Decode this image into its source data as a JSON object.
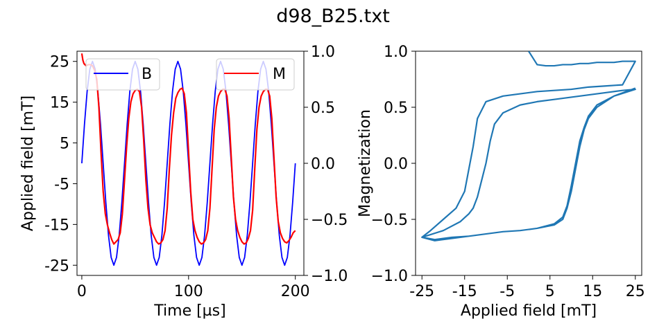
{
  "title": "d98_B25.txt",
  "chart_data": [
    {
      "type": "line",
      "xlabel": "Time [µs]",
      "ylabel": "Applied field [mT]",
      "y2label": "",
      "xlim": [
        -4.5,
        208
      ],
      "ylim": [
        -27.5,
        27.5
      ],
      "y2lim": [
        -1.0,
        1.0
      ],
      "x_ticks": [
        "0",
        "100",
        "200"
      ],
      "y_ticks": [
        "25",
        "15",
        "5",
        "-5",
        "-15",
        "-25"
      ],
      "y2_ticks": [
        "1.0",
        "0.5",
        "0.0",
        "−0.5",
        "−1.0"
      ],
      "grid": false,
      "legend": [
        {
          "label": "B",
          "placement": "top-left"
        },
        {
          "label": "M",
          "placement": "top-right"
        }
      ],
      "series": [
        {
          "name": "B",
          "axis": "left",
          "color": "#0000ff",
          "x": [
            0,
            2.5,
            5,
            7.5,
            10,
            12.5,
            15,
            17.5,
            20,
            22.5,
            25,
            27.5,
            30,
            32.5,
            35,
            37.5,
            40,
            42.5,
            45,
            47.5,
            50,
            52.5,
            55,
            57.5,
            60,
            62.5,
            65,
            67.5,
            70,
            72.5,
            75,
            77.5,
            80,
            82.5,
            85,
            87.5,
            90,
            92.5,
            95,
            97.5,
            100,
            102.5,
            105,
            107.5,
            110,
            112.5,
            115,
            117.5,
            120,
            122.5,
            125,
            127.5,
            130,
            132.5,
            135,
            137.5,
            140,
            142.5,
            145,
            147.5,
            150,
            152.5,
            155,
            157.5,
            160,
            162.5,
            165,
            167.5,
            170,
            172.5,
            175,
            177.5,
            180,
            182.5,
            185,
            187.5,
            190,
            192.5,
            195,
            197.5,
            200
          ],
          "y": [
            0,
            9.6,
            17.7,
            23.1,
            25,
            23.1,
            17.7,
            9.6,
            0,
            -9.6,
            -17.7,
            -23.1,
            -25,
            -23.1,
            -17.7,
            -9.6,
            0,
            9.6,
            17.7,
            23.1,
            25,
            23.1,
            17.7,
            9.6,
            0,
            -9.6,
            -17.7,
            -23.1,
            -25,
            -23.1,
            -17.7,
            -9.6,
            0,
            9.6,
            17.7,
            23.1,
            25,
            23.1,
            17.7,
            9.6,
            0,
            -9.6,
            -17.7,
            -23.1,
            -25,
            -23.1,
            -17.7,
            -9.6,
            0,
            9.6,
            17.7,
            23.1,
            25,
            23.1,
            17.7,
            9.6,
            0,
            -9.6,
            -17.7,
            -23.1,
            -25,
            -23.1,
            -17.7,
            -9.6,
            0,
            9.6,
            17.7,
            23.1,
            25,
            23.1,
            17.7,
            9.6,
            0,
            -9.6,
            -17.7,
            -23.1,
            -25,
            -23.1,
            -17.7,
            -9.6,
            0
          ]
        },
        {
          "name": "M",
          "axis": "right",
          "color": "#ff0000",
          "x": [
            0,
            1,
            2,
            4,
            6,
            8,
            10,
            12,
            14,
            16,
            18,
            20,
            22,
            24,
            26,
            28,
            30,
            32,
            34,
            36,
            38,
            40,
            42,
            44,
            46,
            48,
            50,
            52,
            54,
            56,
            58,
            60,
            62,
            64,
            66,
            68,
            70,
            72,
            74,
            76,
            78,
            80,
            82,
            84,
            86,
            88,
            90,
            92,
            94,
            96,
            98,
            100,
            102,
            104,
            106,
            108,
            110,
            112,
            114,
            116,
            118,
            120,
            122,
            124,
            126,
            128,
            130,
            132,
            134,
            136,
            138,
            140,
            142,
            144,
            146,
            148,
            150,
            152,
            154,
            156,
            158,
            160,
            162,
            164,
            166,
            168,
            170,
            172,
            174,
            176,
            178,
            180,
            182,
            184,
            186,
            188,
            190,
            192,
            194,
            196,
            198,
            200
          ],
          "y": [
            0.98,
            0.92,
            0.89,
            0.87,
            0.88,
            0.88,
            0.87,
            0.83,
            0.75,
            0.5,
            0.1,
            -0.25,
            -0.45,
            -0.55,
            -0.62,
            -0.68,
            -0.72,
            -0.7,
            -0.68,
            -0.62,
            -0.45,
            -0.15,
            0.15,
            0.4,
            0.55,
            0.62,
            0.65,
            0.66,
            0.64,
            0.5,
            0.2,
            -0.15,
            -0.4,
            -0.55,
            -0.62,
            -0.66,
            -0.7,
            -0.72,
            -0.71,
            -0.68,
            -0.6,
            -0.4,
            -0.05,
            0.25,
            0.45,
            0.58,
            0.63,
            0.66,
            0.67,
            0.62,
            0.45,
            0.1,
            -0.25,
            -0.5,
            -0.6,
            -0.66,
            -0.7,
            -0.72,
            -0.71,
            -0.68,
            -0.6,
            -0.4,
            -0.05,
            0.3,
            0.5,
            0.6,
            0.64,
            0.66,
            0.66,
            0.6,
            0.4,
            0.05,
            -0.3,
            -0.5,
            -0.6,
            -0.66,
            -0.7,
            -0.72,
            -0.71,
            -0.67,
            -0.6,
            -0.42,
            -0.05,
            0.3,
            0.5,
            0.6,
            0.64,
            0.66,
            0.66,
            0.6,
            0.4,
            0.05,
            -0.3,
            -0.52,
            -0.62,
            -0.67,
            -0.7,
            -0.71,
            -0.69,
            -0.66,
            -0.62,
            -0.6
          ]
        }
      ]
    },
    {
      "type": "line",
      "xlabel": "Applied field [mT]",
      "ylabel": "Magnetization",
      "xlim": [
        -26.5,
        26.5
      ],
      "ylim": [
        -1.0,
        1.0
      ],
      "x_ticks": [
        "-25",
        "-15",
        "-5",
        "5",
        "15",
        "25"
      ],
      "y_ticks": [
        "1.0",
        "0.5",
        "0.0",
        "−0.5",
        "−1.0"
      ],
      "grid": false,
      "series": [
        {
          "color": "#1f77b4",
          "x": [
            0,
            2,
            4,
            6,
            8,
            10,
            12,
            14,
            16,
            18,
            20,
            22,
            25,
            22,
            18,
            14,
            10,
            6,
            2,
            -2,
            -6,
            -10,
            -12,
            -13,
            -14,
            -15,
            -17,
            -20,
            -23,
            -25,
            -22,
            -18,
            -14,
            -10,
            -6,
            -2,
            2,
            6,
            8,
            9,
            10,
            11,
            12,
            13,
            14,
            16,
            20,
            25,
            22,
            18,
            14,
            10,
            6,
            2,
            -2,
            -6,
            -8,
            -9,
            -10,
            -11,
            -12,
            -13,
            -14,
            -16,
            -20,
            -25,
            -22,
            -18,
            -14,
            -10,
            -6,
            -2,
            2,
            6,
            8,
            9,
            10,
            11,
            12,
            13,
            14,
            16,
            20,
            25
          ],
          "y": [
            1.0,
            0.88,
            0.87,
            0.87,
            0.88,
            0.88,
            0.89,
            0.89,
            0.9,
            0.9,
            0.9,
            0.91,
            0.91,
            0.7,
            0.69,
            0.68,
            0.66,
            0.65,
            0.64,
            0.62,
            0.6,
            0.55,
            0.4,
            0.15,
            -0.05,
            -0.25,
            -0.4,
            -0.5,
            -0.6,
            -0.66,
            -0.68,
            -0.66,
            -0.65,
            -0.63,
            -0.61,
            -0.6,
            -0.58,
            -0.55,
            -0.5,
            -0.4,
            -0.25,
            -0.05,
            0.15,
            0.3,
            0.4,
            0.5,
            0.6,
            0.66,
            0.65,
            0.63,
            0.61,
            0.59,
            0.57,
            0.55,
            0.52,
            0.45,
            0.35,
            0.2,
            0.0,
            -0.15,
            -0.3,
            -0.4,
            -0.45,
            -0.52,
            -0.6,
            -0.66,
            -0.69,
            -0.67,
            -0.65,
            -0.63,
            -0.61,
            -0.6,
            -0.58,
            -0.54,
            -0.48,
            -0.38,
            -0.2,
            0.0,
            0.2,
            0.32,
            0.42,
            0.52,
            0.6,
            0.67
          ]
        }
      ]
    }
  ]
}
